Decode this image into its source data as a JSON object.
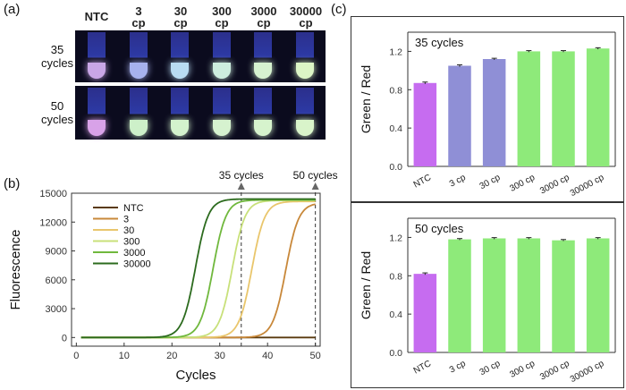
{
  "panels": {
    "a": "(a)",
    "b": "(b)",
    "c": "(c)"
  },
  "panel_a": {
    "columns": [
      "NTC",
      "3\ncp",
      "30\ncp",
      "300\ncp",
      "3000\ncp",
      "30000\ncp"
    ],
    "rows": [
      {
        "label": "35\ncycles",
        "tube_colors": [
          "#c9a6e6",
          "#a7b2ee",
          "#b9dcf2",
          "#cdeede",
          "#d6f2d0",
          "#dcf5c6"
        ]
      },
      {
        "label": "50\ncycles",
        "tube_colors": [
          "#d8a2e8",
          "#cdf0c9",
          "#d3f2cd",
          "#d6f2cf",
          "#d6f3cd",
          "#d9f4ca"
        ]
      }
    ]
  },
  "chart_data": [
    {
      "type": "line",
      "xlabel": "Cycles",
      "ylabel": "Fluorescence",
      "xlim": [
        -1,
        51
      ],
      "ylim": [
        -900,
        15000
      ],
      "xticks": [
        0,
        10,
        20,
        30,
        40,
        50
      ],
      "yticks": [
        0,
        3000,
        6000,
        9000,
        12000,
        15000
      ],
      "series": [
        {
          "name": "NTC",
          "color": "#5a3a0f",
          "midpoint": null,
          "plateau": 0
        },
        {
          "name": "3",
          "color": "#c8883a",
          "midpoint": 43.8,
          "plateau": 14000
        },
        {
          "name": "30",
          "color": "#e9c66c",
          "midpoint": 36.7,
          "plateau": 14150
        },
        {
          "name": "300",
          "color": "#c8e07a",
          "midpoint": 32.6,
          "plateau": 14250
        },
        {
          "name": "3000",
          "color": "#70b83d",
          "midpoint": 28.6,
          "plateau": 14300
        },
        {
          "name": "30000",
          "color": "#2c6b1e",
          "midpoint": 24.9,
          "plateau": 14400
        }
      ],
      "annotations": [
        {
          "text": "35 cycles",
          "x": 34.5
        },
        {
          "text": "50 cycles",
          "x": 50
        }
      ]
    },
    {
      "type": "bar",
      "title": "35 cycles",
      "ylabel": "Green / Red",
      "ylim": [
        0,
        1.4
      ],
      "yticks": [
        0.0,
        0.4,
        0.8,
        1.2
      ],
      "categories": [
        "NTC",
        "3 cp",
        "30 cp",
        "300 cp",
        "3000 cp",
        "30000 cp"
      ],
      "values": [
        0.87,
        1.05,
        1.12,
        1.2,
        1.2,
        1.23
      ],
      "errors": [
        0.01,
        0.01,
        0.008,
        0.008,
        0.008,
        0.008
      ],
      "colors": [
        "#c66cf0",
        "#8f8fd6",
        "#8f8fd6",
        "#8eea7a",
        "#8eea7a",
        "#8eea7a"
      ]
    },
    {
      "type": "bar",
      "title": "50 cycles",
      "ylabel": "Green / Red",
      "ylim": [
        0,
        1.4
      ],
      "yticks": [
        0.0,
        0.4,
        0.8,
        1.2
      ],
      "categories": [
        "NTC",
        "3 cp",
        "30 cp",
        "300 cp",
        "3000 cp",
        "30000 cp"
      ],
      "values": [
        0.82,
        1.18,
        1.19,
        1.19,
        1.17,
        1.19
      ],
      "errors": [
        0.01,
        0.008,
        0.008,
        0.008,
        0.008,
        0.008
      ],
      "colors": [
        "#c66cf0",
        "#8eea7a",
        "#8eea7a",
        "#8eea7a",
        "#8eea7a",
        "#8eea7a"
      ]
    }
  ]
}
